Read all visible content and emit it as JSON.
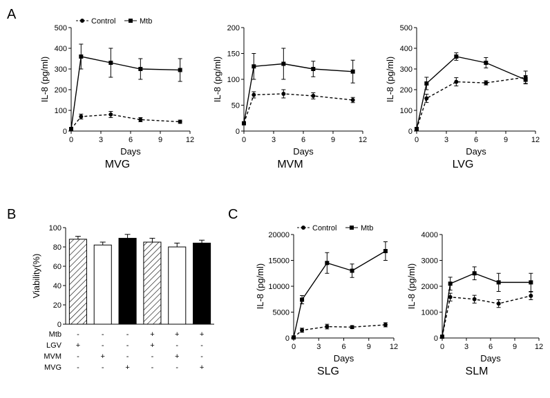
{
  "colors": {
    "line": "#000000",
    "background": "#ffffff",
    "hatch": "#000000",
    "bar_white": "#ffffff",
    "bar_black": "#000000"
  },
  "fonts": {
    "panel_letter": 20,
    "panel_title": 16,
    "axis_label": 13,
    "tick_label": 11,
    "legend_label": 11
  },
  "panel_letters": {
    "A": "A",
    "B": "B",
    "C": "C"
  },
  "legend_line": {
    "control": "Control",
    "mtb": "Mtb"
  },
  "panelA": {
    "charts": [
      {
        "title": "MVG",
        "ylabel": "IL-8 (pg/ml)",
        "xlabel": "Days",
        "xlim": [
          0,
          12
        ],
        "xticks": [
          0,
          3,
          6,
          9,
          12
        ],
        "ylim": [
          0,
          500
        ],
        "yticks": [
          0,
          100,
          200,
          300,
          400,
          500
        ],
        "control": {
          "x": [
            0,
            1,
            4,
            7,
            11
          ],
          "y": [
            10,
            70,
            80,
            55,
            45
          ],
          "err": [
            5,
            12,
            15,
            10,
            8
          ]
        },
        "mtb": {
          "x": [
            0,
            1,
            4,
            7,
            11
          ],
          "y": [
            10,
            360,
            330,
            300,
            295
          ],
          "err": [
            5,
            60,
            70,
            50,
            55
          ]
        }
      },
      {
        "title": "MVM",
        "ylabel": "IL-8 (pg/ml)",
        "xlabel": "Days",
        "xlim": [
          0,
          12
        ],
        "xticks": [
          0,
          3,
          6,
          9,
          12
        ],
        "ylim": [
          0,
          200
        ],
        "yticks": [
          0,
          50,
          100,
          150,
          200
        ],
        "control": {
          "x": [
            0,
            1,
            4,
            7,
            11
          ],
          "y": [
            15,
            70,
            72,
            68,
            60
          ],
          "err": [
            3,
            6,
            8,
            6,
            5
          ]
        },
        "mtb": {
          "x": [
            0,
            1,
            4,
            7,
            11
          ],
          "y": [
            15,
            125,
            130,
            120,
            115
          ],
          "err": [
            3,
            25,
            30,
            15,
            22
          ]
        }
      },
      {
        "title": "LVG",
        "ylabel": "IL-8 (pg/ml)",
        "xlabel": "Days",
        "xlim": [
          0,
          12
        ],
        "xticks": [
          0,
          3,
          6,
          9,
          12
        ],
        "ylim": [
          0,
          500
        ],
        "yticks": [
          0,
          100,
          200,
          300,
          400,
          500
        ],
        "control": {
          "x": [
            0,
            1,
            4,
            7,
            11
          ],
          "y": [
            10,
            158,
            238,
            233,
            260
          ],
          "err": [
            3,
            20,
            20,
            10,
            30
          ]
        },
        "mtb": {
          "x": [
            0,
            1,
            4,
            7,
            11
          ],
          "y": [
            10,
            230,
            360,
            330,
            248
          ],
          "err": [
            3,
            30,
            18,
            25,
            20
          ]
        }
      }
    ]
  },
  "panelB": {
    "type": "bar",
    "ylabel": "Viability(%)",
    "ylim": [
      0,
      100
    ],
    "yticks": [
      0,
      20,
      40,
      60,
      80,
      100
    ],
    "bars": [
      {
        "value": 88,
        "err": 3,
        "fill": "hatched"
      },
      {
        "value": 82,
        "err": 3,
        "fill": "white"
      },
      {
        "value": 89,
        "err": 4,
        "fill": "black"
      },
      {
        "value": 85,
        "err": 4,
        "fill": "hatched"
      },
      {
        "value": 80,
        "err": 4,
        "fill": "white"
      },
      {
        "value": 84,
        "err": 3,
        "fill": "black"
      }
    ],
    "rows": [
      {
        "label": "Mtb",
        "vals": [
          "-",
          "-",
          "-",
          "+",
          "+",
          "+"
        ]
      },
      {
        "label": "LGV",
        "vals": [
          "+",
          "-",
          "-",
          "+",
          "-",
          "-"
        ]
      },
      {
        "label": "MVM",
        "vals": [
          "-",
          "+",
          "-",
          "-",
          "+",
          "-"
        ]
      },
      {
        "label": "MVG",
        "vals": [
          "-",
          "-",
          "+",
          "-",
          "-",
          "+"
        ]
      }
    ],
    "bar_width": 0.7
  },
  "panelC": {
    "charts": [
      {
        "title": "SLG",
        "ylabel": "IL-8 (pg/ml)",
        "xlabel": "Days",
        "xlim": [
          0,
          12
        ],
        "xticks": [
          0,
          3,
          6,
          9,
          12
        ],
        "ylim": [
          0,
          20000
        ],
        "yticks": [
          0,
          5000,
          10000,
          15000,
          20000
        ],
        "control": {
          "x": [
            0,
            1,
            4,
            7,
            11
          ],
          "y": [
            100,
            1500,
            2200,
            2100,
            2550
          ],
          "err": [
            50,
            400,
            450,
            300,
            400
          ]
        },
        "mtb": {
          "x": [
            0,
            1,
            4,
            7,
            11
          ],
          "y": [
            100,
            7400,
            14500,
            13000,
            16800
          ],
          "err": [
            50,
            800,
            2000,
            1300,
            1800
          ]
        }
      },
      {
        "title": "SLM",
        "ylabel": "IL-8 (pg/ml)",
        "xlabel": "Days",
        "xlim": [
          0,
          12
        ],
        "xticks": [
          0,
          3,
          6,
          9,
          12
        ],
        "ylim": [
          0,
          4000
        ],
        "yticks": [
          0,
          1000,
          2000,
          3000,
          4000
        ],
        "control": {
          "x": [
            0,
            1,
            4,
            7,
            11
          ],
          "y": [
            50,
            1580,
            1500,
            1330,
            1630
          ],
          "err": [
            20,
            150,
            150,
            150,
            150
          ]
        },
        "mtb": {
          "x": [
            0,
            1,
            4,
            7,
            11
          ],
          "y": [
            50,
            2100,
            2500,
            2150,
            2150
          ],
          "err": [
            20,
            250,
            250,
            350,
            350
          ]
        }
      }
    ]
  }
}
